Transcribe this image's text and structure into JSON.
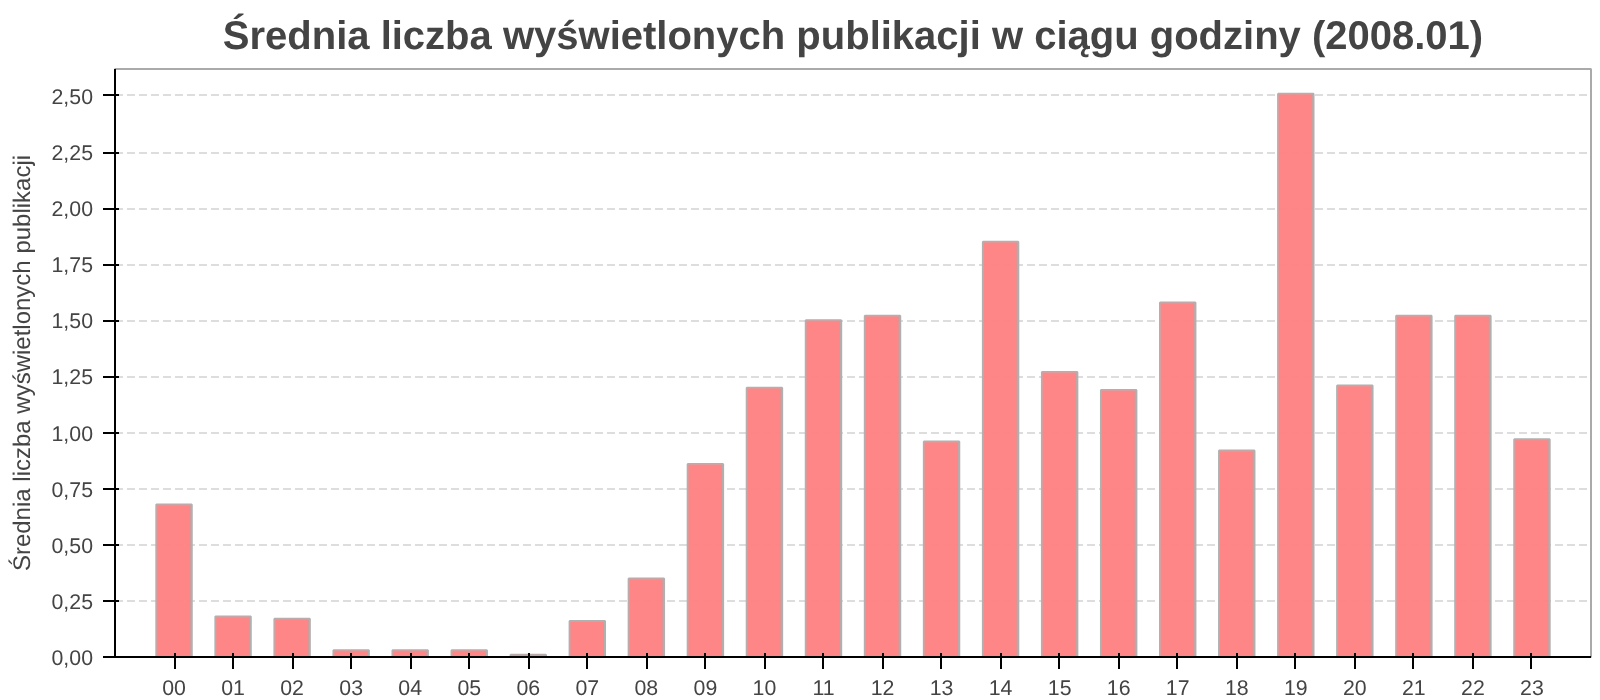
{
  "chart_data": {
    "type": "bar",
    "title": "Średnia liczba wyświetlonych publikacji w ciągu godziny (2008.01)",
    "ylabel": "Średnia liczba wyświetlonych publikacji",
    "categories": [
      "00",
      "01",
      "02",
      "03",
      "04",
      "05",
      "06",
      "07",
      "08",
      "09",
      "10",
      "11",
      "12",
      "13",
      "14",
      "15",
      "16",
      "17",
      "18",
      "19",
      "20",
      "21",
      "22",
      "23"
    ],
    "values": [
      0.68,
      0.18,
      0.17,
      0.03,
      0.03,
      0.03,
      0.01,
      0.16,
      0.35,
      0.86,
      1.2,
      1.5,
      1.52,
      0.96,
      1.85,
      1.27,
      1.19,
      1.58,
      0.92,
      2.51,
      1.21,
      1.52,
      1.52,
      0.97
    ],
    "color": "#ff8080",
    "ylim": [
      0,
      2.62
    ],
    "yticks": [
      {
        "value": 0,
        "label": "0,00"
      },
      {
        "value": 0.25,
        "label": "0,25"
      },
      {
        "value": 0.5,
        "label": "0,50"
      },
      {
        "value": 0.75,
        "label": "0,75"
      },
      {
        "value": 1,
        "label": "1,00"
      },
      {
        "value": 1.25,
        "label": "1,25"
      },
      {
        "value": 1.5,
        "label": "1,50"
      },
      {
        "value": 1.75,
        "label": "1,75"
      },
      {
        "value": 2,
        "label": "2,00"
      },
      {
        "value": 2.25,
        "label": "2,25"
      },
      {
        "value": 2.5,
        "label": "2,50"
      }
    ],
    "grid": "y"
  }
}
